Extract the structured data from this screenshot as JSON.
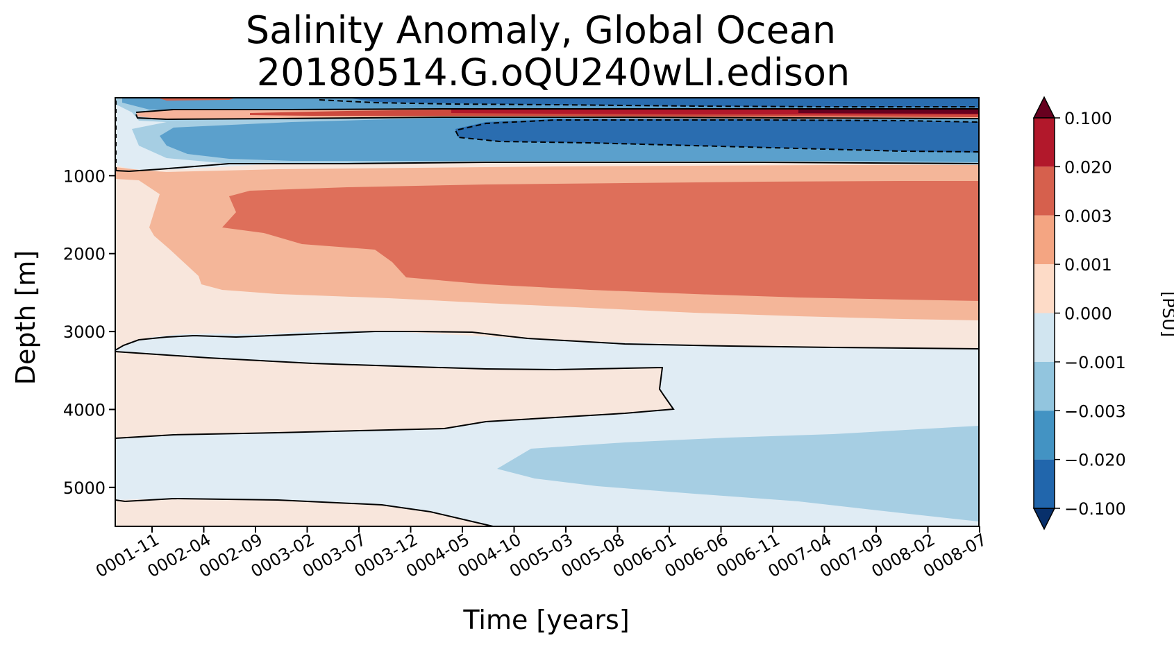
{
  "chart_data": {
    "type": "heatmap",
    "subtype": "filled-contour",
    "title": "Salinity Anomaly, Global Ocean",
    "subtitle": "20180514.G.oQU240wLI.edison",
    "xlabel": "Time [years]",
    "ylabel": "Depth [m]",
    "y_inverted": true,
    "ylim": [
      0,
      5500
    ],
    "x_ticks": [
      "0001-11",
      "0002-04",
      "0002-09",
      "0003-02",
      "0003-07",
      "0003-12",
      "0004-05",
      "0004-10",
      "0005-03",
      "0005-08",
      "0006-01",
      "0006-06",
      "0006-11",
      "0007-04",
      "0007-09",
      "0008-02",
      "0008-07"
    ],
    "y_ticks": [
      "1000",
      "2000",
      "3000",
      "4000",
      "5000"
    ],
    "colorbar": {
      "label": "[PSU]",
      "extend": "both",
      "levels": [
        "−0.100",
        "−0.020",
        "−0.003",
        "−0.001",
        "0.000",
        "0.001",
        "0.003",
        "0.020",
        "0.100"
      ],
      "colors": [
        "#08306b",
        "#2166ac",
        "#4393c3",
        "#92c5de",
        "#d1e5f0",
        "#fddbc7",
        "#f4a582",
        "#d6604d",
        "#b2182b",
        "#67001f"
      ]
    },
    "regions": [
      {
        "name": "deep-positive-0.003-0.020",
        "color": "#d6604d",
        "depth_range": [
          1200,
          2600
        ]
      },
      {
        "name": "upper-negative-0.020-0.100",
        "color": "#2166ac",
        "depth_range": [
          280,
          700
        ]
      },
      {
        "name": "near-surface-positive",
        "color": "#b2182b",
        "depth_range": [
          150,
          250
        ]
      },
      {
        "name": "abyssal-negative-0.001-0.003",
        "color": "#92c5de",
        "depth_range": [
          4200,
          5400
        ]
      }
    ],
    "grid": false,
    "legend": "colorbar right"
  }
}
